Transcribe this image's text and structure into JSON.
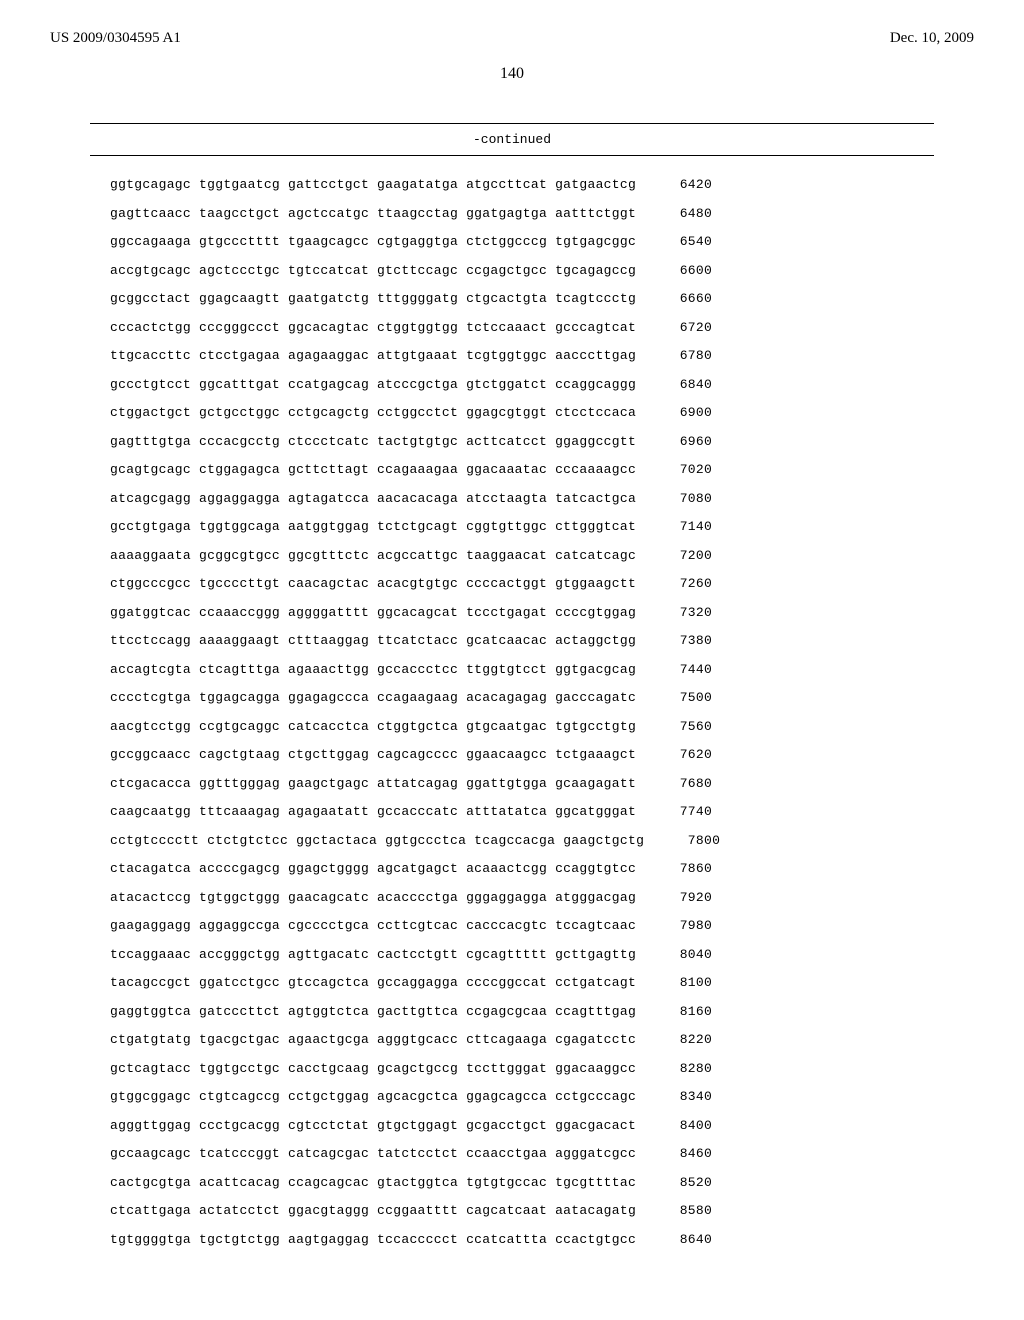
{
  "header": {
    "left": "US 2009/0304595 A1",
    "right": "Dec. 10, 2009"
  },
  "page_number": "140",
  "continued_label": "-continued",
  "sequence": {
    "rows": [
      {
        "b": [
          "ggtgcagagc",
          "tggtgaatcg",
          "gattcctgct",
          "gaagatatga",
          "atgccttcat",
          "gatgaactcg"
        ],
        "n": "6420"
      },
      {
        "b": [
          "gagttcaacc",
          "taagcctgct",
          "agctccatgc",
          "ttaagcctag",
          "ggatgagtga",
          "aatttctggt"
        ],
        "n": "6480"
      },
      {
        "b": [
          "ggccagaaga",
          "gtgccctttt",
          "tgaagcagcc",
          "cgtgaggtga",
          "ctctggcccg",
          "tgtgagcggc"
        ],
        "n": "6540"
      },
      {
        "b": [
          "accgtgcagc",
          "agctccctgc",
          "tgtccatcat",
          "gtcttccagc",
          "ccgagctgcc",
          "tgcagagccg"
        ],
        "n": "6600"
      },
      {
        "b": [
          "gcggcctact",
          "ggagcaagtt",
          "gaatgatctg",
          "tttggggatg",
          "ctgcactgta",
          "tcagtccctg"
        ],
        "n": "6660"
      },
      {
        "b": [
          "cccactctgg",
          "cccgggccct",
          "ggcacagtac",
          "ctggtggtgg",
          "tctccaaact",
          "gcccagtcat"
        ],
        "n": "6720"
      },
      {
        "b": [
          "ttgcaccttc",
          "ctcctgagaa",
          "agagaaggac",
          "attgtgaaat",
          "tcgtggtggc",
          "aacccttgag"
        ],
        "n": "6780"
      },
      {
        "b": [
          "gccctgtcct",
          "ggcatttgat",
          "ccatgagcag",
          "atcccgctga",
          "gtctggatct",
          "ccaggcaggg"
        ],
        "n": "6840"
      },
      {
        "b": [
          "ctggactgct",
          "gctgcctggc",
          "cctgcagctg",
          "cctggcctct",
          "ggagcgtggt",
          "ctcctccaca"
        ],
        "n": "6900"
      },
      {
        "b": [
          "gagtttgtga",
          "cccacgcctg",
          "ctccctcatc",
          "tactgtgtgc",
          "acttcatcct",
          "ggaggccgtt"
        ],
        "n": "6960"
      },
      {
        "b": [
          "gcagtgcagc",
          "ctggagagca",
          "gcttcttagt",
          "ccagaaagaa",
          "ggacaaatac",
          "cccaaaagcc"
        ],
        "n": "7020"
      },
      {
        "b": [
          "atcagcgagg",
          "aggaggagga",
          "agtagatcca",
          "aacacacaga",
          "atcctaagta",
          "tatcactgca"
        ],
        "n": "7080"
      },
      {
        "b": [
          "gcctgtgaga",
          "tggtggcaga",
          "aatggtggag",
          "tctctgcagt",
          "cggtgttggc",
          "cttgggtcat"
        ],
        "n": "7140"
      },
      {
        "b": [
          "aaaaggaata",
          "gcggcgtgcc",
          "ggcgtttctc",
          "acgccattgc",
          "taaggaacat",
          "catcatcagc"
        ],
        "n": "7200"
      },
      {
        "b": [
          "ctggcccgcc",
          "tgccccttgt",
          "caacagctac",
          "acacgtgtgc",
          "ccccactggt",
          "gtggaagctt"
        ],
        "n": "7260"
      },
      {
        "b": [
          "ggatggtcac",
          "ccaaaccggg",
          "aggggatttt",
          "ggcacagcat",
          "tccctgagat",
          "ccccgtggag"
        ],
        "n": "7320"
      },
      {
        "b": [
          "ttcctccagg",
          "aaaaggaagt",
          "ctttaaggag",
          "ttcatctacc",
          "gcatcaacac",
          "actaggctgg"
        ],
        "n": "7380"
      },
      {
        "b": [
          "accagtcgta",
          "ctcagtttga",
          "agaaacttgg",
          "gccaccctcc",
          "ttggtgtcct",
          "ggtgacgcag"
        ],
        "n": "7440"
      },
      {
        "b": [
          "cccctcgtga",
          "tggagcagga",
          "ggagagccca",
          "ccagaagaag",
          "acacagagag",
          "gacccagatc"
        ],
        "n": "7500"
      },
      {
        "b": [
          "aacgtcctgg",
          "ccgtgcaggc",
          "catcacctca",
          "ctggtgctca",
          "gtgcaatgac",
          "tgtgcctgtg"
        ],
        "n": "7560"
      },
      {
        "b": [
          "gccggcaacc",
          "cagctgtaag",
          "ctgcttggag",
          "cagcagcccc",
          "ggaacaagcc",
          "tctgaaagct"
        ],
        "n": "7620"
      },
      {
        "b": [
          "ctcgacacca",
          "ggtttgggag",
          "gaagctgagc",
          "attatcagag",
          "ggattgtgga",
          "gcaagagatt"
        ],
        "n": "7680"
      },
      {
        "b": [
          "caagcaatgg",
          "tttcaaagag",
          "agagaatatt",
          "gccacccatc",
          "atttatatca",
          "ggcatgggat"
        ],
        "n": "7740"
      },
      {
        "b": [
          "cctgtcccctt",
          "ctctgtctcc",
          "ggctactaca",
          "ggtgccctca",
          "tcagccacga",
          "gaagctgctg"
        ],
        "n": "7800"
      },
      {
        "b": [
          "ctacagatca",
          "accccgagcg",
          "ggagctgggg",
          "agcatgagct",
          "acaaactcgg",
          "ccaggtgtcc"
        ],
        "n": "7860"
      },
      {
        "b": [
          "atacactccg",
          "tgtggctggg",
          "gaacagcatc",
          "acacccctga",
          "gggaggagga",
          "atgggacgag"
        ],
        "n": "7920"
      },
      {
        "b": [
          "gaagaggagg",
          "aggaggccga",
          "cgcccctgca",
          "ccttcgtcac",
          "cacccacgtc",
          "tccagtcaac"
        ],
        "n": "7980"
      },
      {
        "b": [
          "tccaggaaac",
          "accgggctgg",
          "agttgacatc",
          "cactcctgtt",
          "cgcagttttt",
          "gcttgagttg"
        ],
        "n": "8040"
      },
      {
        "b": [
          "tacagccgct",
          "ggatcctgcc",
          "gtccagctca",
          "gccaggagga",
          "ccccggccat",
          "cctgatcagt"
        ],
        "n": "8100"
      },
      {
        "b": [
          "gaggtggtca",
          "gatcccttct",
          "agtggtctca",
          "gacttgttca",
          "ccgagcgcaa",
          "ccagtttgag"
        ],
        "n": "8160"
      },
      {
        "b": [
          "ctgatgtatg",
          "tgacgctgac",
          "agaactgcga",
          "agggtgcacc",
          "cttcagaaga",
          "cgagatcctc"
        ],
        "n": "8220"
      },
      {
        "b": [
          "gctcagtacc",
          "tggtgcctgc",
          "cacctgcaag",
          "gcagctgccg",
          "tccttgggat",
          "ggacaaggcc"
        ],
        "n": "8280"
      },
      {
        "b": [
          "gtggcggagc",
          "ctgtcagccg",
          "cctgctggag",
          "agcacgctca",
          "ggagcagcca",
          "cctgcccagc"
        ],
        "n": "8340"
      },
      {
        "b": [
          "agggttggag",
          "ccctgcacgg",
          "cgtcctctat",
          "gtgctggagt",
          "gcgacctgct",
          "ggacgacact"
        ],
        "n": "8400"
      },
      {
        "b": [
          "gccaagcagc",
          "tcatcccggt",
          "catcagcgac",
          "tatctcctct",
          "ccaacctgaa",
          "agggatcgcc"
        ],
        "n": "8460"
      },
      {
        "b": [
          "cactgcgtga",
          "acattcacag",
          "ccagcagcac",
          "gtactggtca",
          "tgtgtgccac",
          "tgcgttttac"
        ],
        "n": "8520"
      },
      {
        "b": [
          "ctcattgaga",
          "actatcctct",
          "ggacgtaggg",
          "ccggaatttt",
          "cagcatcaat",
          "aatacagatg"
        ],
        "n": "8580"
      },
      {
        "b": [
          "tgtggggtga",
          "tgctgtctgg",
          "aagtgaggag",
          "tccaccccct",
          "ccatcattta",
          "ccactgtgcc"
        ],
        "n": "8640"
      }
    ]
  }
}
